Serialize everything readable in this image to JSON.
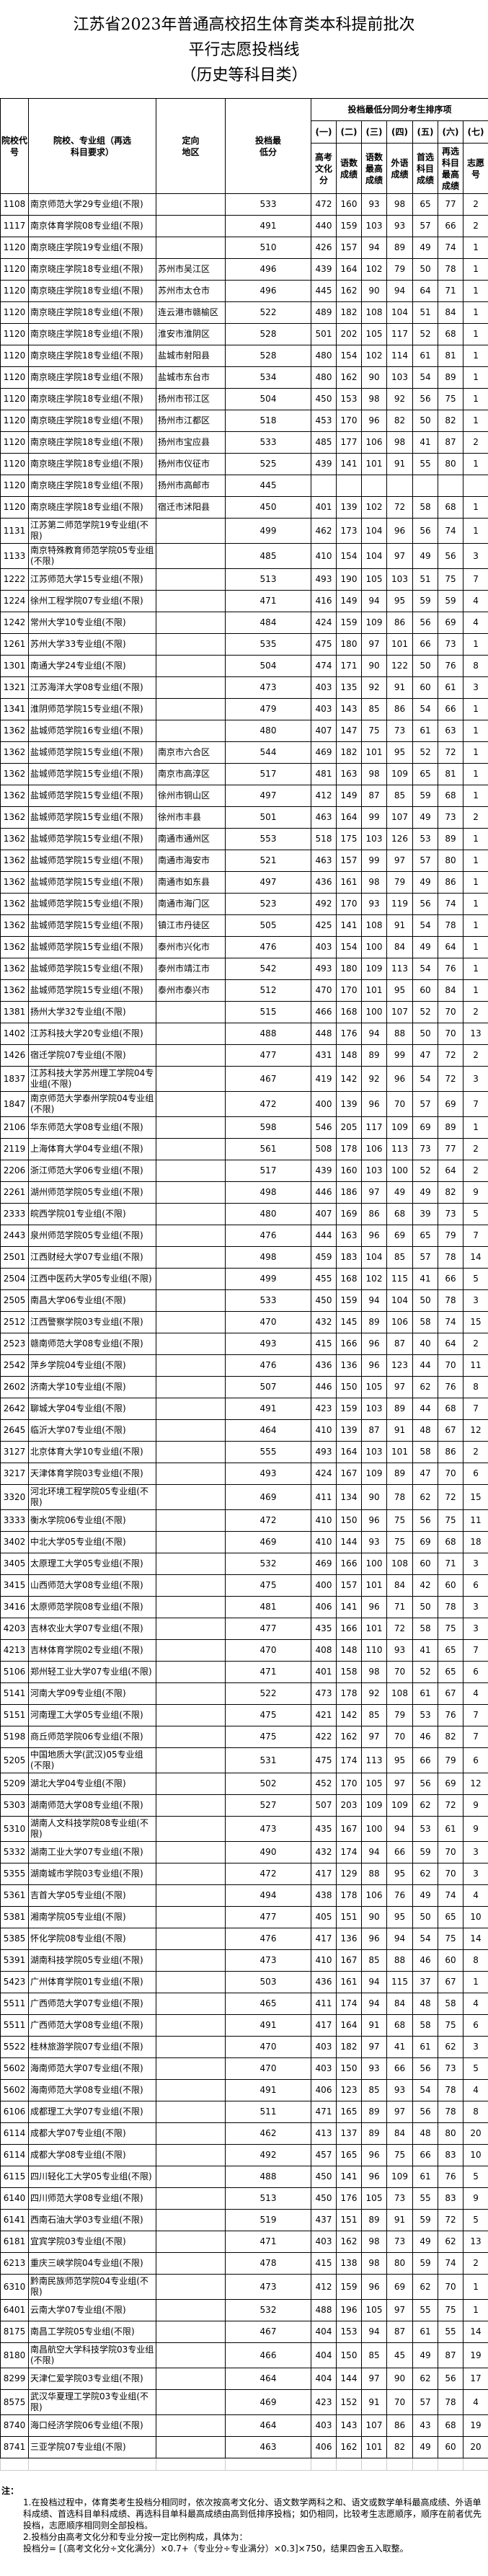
{
  "title": {
    "line1": "江苏省2023年普通高校招生体育类本科提前批次",
    "line2": "平行志愿投档线",
    "line3": "（历史等科目类）"
  },
  "header": {
    "code": "院校代号",
    "name": "院校、专业组（再选科目要求）",
    "region": "定向地区",
    "score": "投档最低分",
    "tiebreak_group": "投档最低分同分考生排序项",
    "sub_index": [
      "(一)",
      "(二)",
      "(三)",
      "(四)",
      "(五)",
      "(六)",
      "(七)"
    ],
    "sub_label": [
      "高考文化分",
      "语数成绩",
      "语数最高成绩",
      "外语成绩",
      "首选科目成绩",
      "再选科目最高成绩",
      "志愿号"
    ]
  },
  "rows": [
    [
      "1108",
      "南京师范大学29专业组(不限)",
      "",
      "533",
      "472",
      "160",
      "93",
      "98",
      "65",
      "77",
      "2"
    ],
    [
      "1117",
      "南京体育学院08专业组(不限)",
      "",
      "491",
      "440",
      "159",
      "103",
      "93",
      "57",
      "66",
      "2"
    ],
    [
      "1120",
      "南京晓庄学院19专业组(不限)",
      "",
      "510",
      "426",
      "157",
      "94",
      "89",
      "49",
      "74",
      "1"
    ],
    [
      "1120",
      "南京晓庄学院18专业组(不限)",
      "苏州市吴江区",
      "496",
      "439",
      "164",
      "102",
      "79",
      "50",
      "78",
      "1"
    ],
    [
      "1120",
      "南京晓庄学院18专业组(不限)",
      "苏州市太仓市",
      "496",
      "445",
      "162",
      "90",
      "94",
      "64",
      "71",
      "1"
    ],
    [
      "1120",
      "南京晓庄学院18专业组(不限)",
      "连云港市赣榆区",
      "522",
      "489",
      "182",
      "108",
      "104",
      "51",
      "84",
      "1"
    ],
    [
      "1120",
      "南京晓庄学院18专业组(不限)",
      "淮安市淮阴区",
      "528",
      "501",
      "202",
      "105",
      "117",
      "52",
      "68",
      "1"
    ],
    [
      "1120",
      "南京晓庄学院18专业组(不限)",
      "盐城市射阳县",
      "528",
      "480",
      "154",
      "102",
      "114",
      "61",
      "81",
      "1"
    ],
    [
      "1120",
      "南京晓庄学院18专业组(不限)",
      "盐城市东台市",
      "534",
      "480",
      "162",
      "90",
      "103",
      "54",
      "89",
      "1"
    ],
    [
      "1120",
      "南京晓庄学院18专业组(不限)",
      "扬州市邗江区",
      "504",
      "450",
      "153",
      "98",
      "92",
      "56",
      "75",
      "1"
    ],
    [
      "1120",
      "南京晓庄学院18专业组(不限)",
      "扬州市江都区",
      "518",
      "453",
      "170",
      "96",
      "82",
      "50",
      "82",
      "1"
    ],
    [
      "1120",
      "南京晓庄学院18专业组(不限)",
      "扬州市宝应县",
      "533",
      "485",
      "177",
      "106",
      "98",
      "41",
      "87",
      "2"
    ],
    [
      "1120",
      "南京晓庄学院18专业组(不限)",
      "扬州市仪征市",
      "525",
      "439",
      "141",
      "101",
      "91",
      "55",
      "80",
      "1"
    ],
    [
      "1120",
      "南京晓庄学院18专业组(不限)",
      "扬州市高邮市",
      "445",
      "",
      "",
      "",
      "",
      "",
      "",
      ""
    ],
    [
      "1120",
      "南京晓庄学院18专业组(不限)",
      "宿迁市沭阳县",
      "450",
      "401",
      "139",
      "102",
      "72",
      "58",
      "68",
      "1"
    ],
    [
      "1131",
      "江苏第二师范学院19专业组(不限)",
      "",
      "499",
      "462",
      "173",
      "104",
      "96",
      "56",
      "74",
      "1"
    ],
    [
      "1133",
      "南京特殊教育师范学院05专业组(不限)",
      "",
      "485",
      "410",
      "154",
      "104",
      "97",
      "49",
      "56",
      "3"
    ],
    [
      "1222",
      "江苏师范大学15专业组(不限)",
      "",
      "513",
      "493",
      "190",
      "105",
      "103",
      "51",
      "75",
      "7"
    ],
    [
      "1224",
      "徐州工程学院07专业组(不限)",
      "",
      "471",
      "416",
      "149",
      "94",
      "95",
      "59",
      "59",
      "4"
    ],
    [
      "1242",
      "常州大学10专业组(不限)",
      "",
      "484",
      "424",
      "159",
      "109",
      "86",
      "56",
      "69",
      "4"
    ],
    [
      "1261",
      "苏州大学33专业组(不限)",
      "",
      "535",
      "475",
      "180",
      "97",
      "101",
      "66",
      "73",
      "1"
    ],
    [
      "1301",
      "南通大学24专业组(不限)",
      "",
      "504",
      "474",
      "171",
      "90",
      "122",
      "50",
      "76",
      "8"
    ],
    [
      "1321",
      "江苏海洋大学08专业组(不限)",
      "",
      "473",
      "403",
      "135",
      "92",
      "91",
      "60",
      "61",
      "3"
    ],
    [
      "1341",
      "淮阴师范学院15专业组(不限)",
      "",
      "479",
      "403",
      "143",
      "85",
      "86",
      "54",
      "66",
      "1"
    ],
    [
      "1362",
      "盐城师范学院16专业组(不限)",
      "",
      "480",
      "407",
      "147",
      "75",
      "73",
      "61",
      "63",
      "1"
    ],
    [
      "1362",
      "盐城师范学院15专业组(不限)",
      "南京市六合区",
      "544",
      "469",
      "182",
      "101",
      "95",
      "52",
      "72",
      "1"
    ],
    [
      "1362",
      "盐城师范学院15专业组(不限)",
      "南京市高淳区",
      "517",
      "481",
      "163",
      "98",
      "109",
      "65",
      "81",
      "1"
    ],
    [
      "1362",
      "盐城师范学院15专业组(不限)",
      "徐州市铜山区",
      "497",
      "412",
      "149",
      "87",
      "85",
      "59",
      "68",
      "1"
    ],
    [
      "1362",
      "盐城师范学院15专业组(不限)",
      "徐州市丰县",
      "501",
      "463",
      "164",
      "99",
      "107",
      "49",
      "73",
      "2"
    ],
    [
      "1362",
      "盐城师范学院15专业组(不限)",
      "南通市通州区",
      "553",
      "518",
      "175",
      "103",
      "126",
      "53",
      "89",
      "1"
    ],
    [
      "1362",
      "盐城师范学院15专业组(不限)",
      "南通市海安市",
      "521",
      "463",
      "157",
      "99",
      "97",
      "57",
      "80",
      "1"
    ],
    [
      "1362",
      "盐城师范学院15专业组(不限)",
      "南通市如东县",
      "497",
      "436",
      "161",
      "98",
      "79",
      "49",
      "86",
      "1"
    ],
    [
      "1362",
      "盐城师范学院15专业组(不限)",
      "南通市海门区",
      "523",
      "492",
      "170",
      "93",
      "119",
      "56",
      "74",
      "1"
    ],
    [
      "1362",
      "盐城师范学院15专业组(不限)",
      "镇江市丹徒区",
      "505",
      "425",
      "141",
      "108",
      "91",
      "54",
      "78",
      "1"
    ],
    [
      "1362",
      "盐城师范学院15专业组(不限)",
      "泰州市兴化市",
      "476",
      "403",
      "154",
      "100",
      "84",
      "49",
      "64",
      "1"
    ],
    [
      "1362",
      "盐城师范学院15专业组(不限)",
      "泰州市靖江市",
      "542",
      "493",
      "180",
      "109",
      "113",
      "54",
      "76",
      "1"
    ],
    [
      "1362",
      "盐城师范学院15专业组(不限)",
      "泰州市泰兴市",
      "512",
      "470",
      "170",
      "101",
      "95",
      "60",
      "84",
      "1"
    ],
    [
      "1381",
      "扬州大学32专业组(不限)",
      "",
      "515",
      "466",
      "168",
      "100",
      "107",
      "52",
      "70",
      "2"
    ],
    [
      "1402",
      "江苏科技大学20专业组(不限)",
      "",
      "488",
      "448",
      "176",
      "94",
      "88",
      "50",
      "70",
      "13"
    ],
    [
      "1426",
      "宿迁学院07专业组(不限)",
      "",
      "477",
      "431",
      "148",
      "89",
      "99",
      "47",
      "72",
      "2"
    ],
    [
      "1837",
      "江苏科技大学苏州理工学院04专业组(不限)",
      "",
      "467",
      "419",
      "142",
      "92",
      "96",
      "54",
      "72",
      "3"
    ],
    [
      "1847",
      "南京师范大学泰州学院04专业组(不限)",
      "",
      "472",
      "400",
      "139",
      "96",
      "70",
      "57",
      "69",
      "7"
    ],
    [
      "2106",
      "华东师范大学08专业组(不限)",
      "",
      "598",
      "546",
      "205",
      "117",
      "109",
      "69",
      "89",
      "1"
    ],
    [
      "2119",
      "上海体育大学04专业组(不限)",
      "",
      "561",
      "508",
      "178",
      "106",
      "113",
      "73",
      "77",
      "2"
    ],
    [
      "2206",
      "浙江师范大学06专业组(不限)",
      "",
      "517",
      "439",
      "160",
      "103",
      "100",
      "52",
      "64",
      "2"
    ],
    [
      "2261",
      "湖州师范学院05专业组(不限)",
      "",
      "498",
      "446",
      "186",
      "97",
      "49",
      "49",
      "82",
      "9"
    ],
    [
      "2333",
      "皖西学院01专业组(不限)",
      "",
      "480",
      "407",
      "169",
      "86",
      "68",
      "39",
      "73",
      "5"
    ],
    [
      "2443",
      "泉州师范学院05专业组(不限)",
      "",
      "476",
      "444",
      "163",
      "96",
      "69",
      "65",
      "79",
      "7"
    ],
    [
      "2501",
      "江西财经大学07专业组(不限)",
      "",
      "498",
      "459",
      "183",
      "104",
      "85",
      "57",
      "78",
      "14"
    ],
    [
      "2504",
      "江西中医药大学05专业组(不限)",
      "",
      "499",
      "455",
      "168",
      "102",
      "115",
      "41",
      "66",
      "5"
    ],
    [
      "2505",
      "南昌大学06专业组(不限)",
      "",
      "533",
      "450",
      "159",
      "94",
      "104",
      "50",
      "78",
      "3"
    ],
    [
      "2512",
      "江西警察学院03专业组(不限)",
      "",
      "470",
      "432",
      "145",
      "89",
      "106",
      "58",
      "74",
      "15"
    ],
    [
      "2523",
      "赣南师范大学08专业组(不限)",
      "",
      "493",
      "415",
      "166",
      "96",
      "87",
      "40",
      "64",
      "2"
    ],
    [
      "2542",
      "萍乡学院04专业组(不限)",
      "",
      "476",
      "436",
      "136",
      "96",
      "123",
      "44",
      "70",
      "11"
    ],
    [
      "2602",
      "济南大学10专业组(不限)",
      "",
      "507",
      "446",
      "150",
      "105",
      "97",
      "62",
      "76",
      "8"
    ],
    [
      "2642",
      "聊城大学04专业组(不限)",
      "",
      "491",
      "423",
      "159",
      "103",
      "89",
      "44",
      "68",
      "7"
    ],
    [
      "2645",
      "临沂大学07专业组(不限)",
      "",
      "464",
      "410",
      "139",
      "87",
      "91",
      "48",
      "67",
      "12"
    ],
    [
      "3127",
      "北京体育大学10专业组(不限)",
      "",
      "555",
      "493",
      "164",
      "103",
      "101",
      "58",
      "86",
      "2"
    ],
    [
      "3217",
      "天津体育学院03专业组(不限)",
      "",
      "493",
      "424",
      "167",
      "109",
      "89",
      "47",
      "70",
      "6"
    ],
    [
      "3320",
      "河北环境工程学院05专业组(不限)",
      "",
      "469",
      "411",
      "134",
      "90",
      "78",
      "62",
      "72",
      "15"
    ],
    [
      "3333",
      "衡水学院06专业组(不限)",
      "",
      "472",
      "410",
      "150",
      "96",
      "75",
      "56",
      "75",
      "11"
    ],
    [
      "3402",
      "中北大学05专业组(不限)",
      "",
      "469",
      "410",
      "144",
      "93",
      "75",
      "69",
      "68",
      "18"
    ],
    [
      "3405",
      "太原理工大学05专业组(不限)",
      "",
      "532",
      "469",
      "166",
      "100",
      "108",
      "60",
      "71",
      "3"
    ],
    [
      "3415",
      "山西师范大学08专业组(不限)",
      "",
      "475",
      "400",
      "157",
      "101",
      "84",
      "42",
      "60",
      "6"
    ],
    [
      "3416",
      "太原师范学院08专业组(不限)",
      "",
      "481",
      "406",
      "141",
      "96",
      "71",
      "50",
      "78",
      "3"
    ],
    [
      "4203",
      "吉林农业大学07专业组(不限)",
      "",
      "477",
      "435",
      "166",
      "101",
      "72",
      "58",
      "75",
      "3"
    ],
    [
      "4213",
      "吉林体育学院02专业组(不限)",
      "",
      "470",
      "408",
      "148",
      "110",
      "93",
      "41",
      "65",
      "7"
    ],
    [
      "5106",
      "郑州轻工业大学07专业组(不限)",
      "",
      "471",
      "401",
      "158",
      "98",
      "70",
      "52",
      "65",
      "6"
    ],
    [
      "5141",
      "河南大学09专业组(不限)",
      "",
      "522",
      "473",
      "178",
      "92",
      "108",
      "61",
      "67",
      "4"
    ],
    [
      "5151",
      "河南理工大学05专业组(不限)",
      "",
      "475",
      "421",
      "142",
      "85",
      "79",
      "53",
      "76",
      "7"
    ],
    [
      "5198",
      "商丘师范学院06专业组(不限)",
      "",
      "475",
      "422",
      "162",
      "97",
      "70",
      "46",
      "82",
      "7"
    ],
    [
      "5205",
      "中国地质大学(武汉)05专业组(不限)",
      "",
      "531",
      "475",
      "174",
      "113",
      "95",
      "66",
      "79",
      "6"
    ],
    [
      "5209",
      "湖北大学04专业组(不限)",
      "",
      "502",
      "452",
      "170",
      "105",
      "97",
      "56",
      "69",
      "12"
    ],
    [
      "5303",
      "湖南师范大学08专业组(不限)",
      "",
      "527",
      "507",
      "203",
      "109",
      "109",
      "62",
      "72",
      "9"
    ],
    [
      "5310",
      "湖南人文科技学院08专业组(不限)",
      "",
      "473",
      "435",
      "167",
      "100",
      "94",
      "53",
      "61",
      "9"
    ],
    [
      "5332",
      "湖南工业大学07专业组(不限)",
      "",
      "490",
      "432",
      "174",
      "94",
      "66",
      "59",
      "70",
      "3"
    ],
    [
      "5355",
      "湖南城市学院03专业组(不限)",
      "",
      "472",
      "417",
      "129",
      "88",
      "95",
      "62",
      "70",
      "3"
    ],
    [
      "5361",
      "吉首大学05专业组(不限)",
      "",
      "494",
      "438",
      "178",
      "106",
      "76",
      "49",
      "74",
      "4"
    ],
    [
      "5381",
      "湘南学院05专业组(不限)",
      "",
      "477",
      "405",
      "151",
      "90",
      "95",
      "50",
      "65",
      "10"
    ],
    [
      "5385",
      "怀化学院08专业组(不限)",
      "",
      "476",
      "417",
      "136",
      "96",
      "94",
      "54",
      "75",
      "14"
    ],
    [
      "5391",
      "湖南科技学院05专业组(不限)",
      "",
      "473",
      "410",
      "167",
      "85",
      "88",
      "46",
      "60",
      "8"
    ],
    [
      "5423",
      "广州体育学院01专业组(不限)",
      "",
      "503",
      "436",
      "161",
      "94",
      "115",
      "37",
      "67",
      "1"
    ],
    [
      "5511",
      "广西师范大学07专业组(不限)",
      "",
      "465",
      "411",
      "174",
      "94",
      "84",
      "48",
      "58",
      "4"
    ],
    [
      "5511",
      "广西师范大学08专业组(不限)",
      "",
      "491",
      "417",
      "164",
      "91",
      "68",
      "58",
      "75",
      "6"
    ],
    [
      "5522",
      "桂林旅游学院07专业组(不限)",
      "",
      "470",
      "403",
      "182",
      "97",
      "41",
      "61",
      "62",
      "3"
    ],
    [
      "5602",
      "海南师范大学07专业组(不限)",
      "",
      "470",
      "403",
      "150",
      "93",
      "66",
      "56",
      "73",
      "5"
    ],
    [
      "5602",
      "海南师范大学08专业组(不限)",
      "",
      "491",
      "406",
      "123",
      "85",
      "93",
      "54",
      "78",
      "4"
    ],
    [
      "6106",
      "成都理工大学07专业组(不限)",
      "",
      "511",
      "471",
      "165",
      "89",
      "97",
      "56",
      "78",
      "8"
    ],
    [
      "6114",
      "成都大学07专业组(不限)",
      "",
      "462",
      "413",
      "137",
      "89",
      "84",
      "48",
      "80",
      "20"
    ],
    [
      "6114",
      "成都大学08专业组(不限)",
      "",
      "492",
      "457",
      "165",
      "96",
      "75",
      "66",
      "83",
      "10"
    ],
    [
      "6115",
      "四川轻化工大学05专业组(不限)",
      "",
      "488",
      "450",
      "141",
      "96",
      "109",
      "61",
      "76",
      "5"
    ],
    [
      "6140",
      "四川师范大学08专业组(不限)",
      "",
      "513",
      "450",
      "176",
      "105",
      "73",
      "55",
      "83",
      "9"
    ],
    [
      "6141",
      "西南石油大学03专业组(不限)",
      "",
      "519",
      "437",
      "151",
      "89",
      "91",
      "59",
      "72",
      "5"
    ],
    [
      "6181",
      "宜宾学院03专业组(不限)",
      "",
      "471",
      "403",
      "162",
      "98",
      "73",
      "49",
      "62",
      "13"
    ],
    [
      "6213",
      "重庆三峡学院04专业组(不限)",
      "",
      "478",
      "415",
      "138",
      "98",
      "80",
      "59",
      "74",
      "2"
    ],
    [
      "6310",
      "黔南民族师范学院04专业组(不限)",
      "",
      "473",
      "412",
      "159",
      "96",
      "69",
      "62",
      "70",
      "1"
    ],
    [
      "6401",
      "云南大学07专业组(不限)",
      "",
      "532",
      "488",
      "196",
      "105",
      "97",
      "55",
      "75",
      "1"
    ],
    [
      "8175",
      "南昌工学院05专业组(不限)",
      "",
      "467",
      "404",
      "153",
      "94",
      "87",
      "61",
      "55",
      "14"
    ],
    [
      "8180",
      "南昌航空大学科技学院03专业组(不限)",
      "",
      "466",
      "404",
      "150",
      "85",
      "45",
      "49",
      "87",
      "19"
    ],
    [
      "8299",
      "天津仁爱学院03专业组(不限)",
      "",
      "464",
      "404",
      "144",
      "97",
      "90",
      "62",
      "56",
      "17"
    ],
    [
      "8575",
      "武汉华夏理工学院03专业组(不限)",
      "",
      "469",
      "423",
      "152",
      "91",
      "70",
      "57",
      "78",
      "4"
    ],
    [
      "8740",
      "海口经济学院06专业组(不限)",
      "",
      "464",
      "403",
      "143",
      "107",
      "86",
      "43",
      "68",
      "19"
    ],
    [
      "8741",
      "三亚学院07专业组(不限)",
      "",
      "463",
      "406",
      "162",
      "101",
      "82",
      "49",
      "60",
      "20"
    ]
  ],
  "notes": {
    "heading": "注：",
    "item1": "1.在投档过程中，体育类考生投档分相同时，依次按高考文化分、语文数学两科之和、语文或数学单科最高成绩、外语单科成绩、首选科目单科成绩、再选科目单科最高成绩由高到低排序投档；如仍相同，比较考生志愿顺序，顺序在前者优先投档，志愿顺序相同则全部投档。",
    "item2": "2.投档分由高考文化分和专业分按一定比例构成，具体为：",
    "formula": "投档分= [（高考文化分÷文化满分）×0.7+（专业分÷专业满分）×0.3]×750，结果四舍五入取整。"
  }
}
